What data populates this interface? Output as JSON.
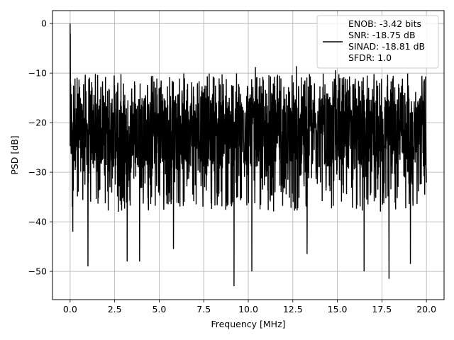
{
  "chart_data": {
    "type": "line",
    "title": "",
    "xlabel": "Frequency [MHz]",
    "ylabel": "PSD [dB]",
    "xlim": [
      -0.99,
      20.99
    ],
    "ylim": [
      -55.7,
      2.6
    ],
    "xticks": [
      0.0,
      2.5,
      5.0,
      7.5,
      10.0,
      12.5,
      15.0,
      17.5,
      20.0
    ],
    "xtick_labels": [
      "0.0",
      "2.5",
      "5.0",
      "7.5",
      "10.0",
      "12.5",
      "15.0",
      "17.5",
      "20.0"
    ],
    "yticks": [
      0,
      -10,
      -20,
      -30,
      -40,
      -50
    ],
    "ytick_labels": [
      "0",
      "−10",
      "−20",
      "−30",
      "−40",
      "−50"
    ],
    "grid": true,
    "legend_position": "upper-right",
    "legend_entries": [
      "ENOB: -3.42 bits",
      "SNR: -18.75 dB",
      "SINAD: -18.81 dB",
      "SFDR: 1.0"
    ],
    "series": [
      {
        "color": "#000000",
        "x_start": 0.0,
        "x_end": 20.0,
        "peak": {
          "x": 0.0,
          "y": 0.0
        },
        "noise_floor_typical": [
          -30,
          -10
        ],
        "notable_dips": [
          {
            "x": 0.15,
            "y": -42.0
          },
          {
            "x": 1.0,
            "y": -49.0
          },
          {
            "x": 3.2,
            "y": -48.0
          },
          {
            "x": 3.9,
            "y": -48.0
          },
          {
            "x": 5.8,
            "y": -45.5
          },
          {
            "x": 9.2,
            "y": -53.0
          },
          {
            "x": 10.2,
            "y": -50.0
          },
          {
            "x": 13.3,
            "y": -46.5
          },
          {
            "x": 16.5,
            "y": -50.0
          },
          {
            "x": 17.9,
            "y": -51.5
          },
          {
            "x": 19.1,
            "y": -48.5
          }
        ],
        "notable_peaks": [
          {
            "x": 10.4,
            "y": -8.8
          },
          {
            "x": 12.7,
            "y": -8.6
          },
          {
            "x": 14.9,
            "y": -9.4
          }
        ]
      }
    ]
  },
  "colors": {
    "line": "#000000",
    "grid": "#b0b0b0",
    "axes": "#000000",
    "legend_border": "#cccccc"
  }
}
